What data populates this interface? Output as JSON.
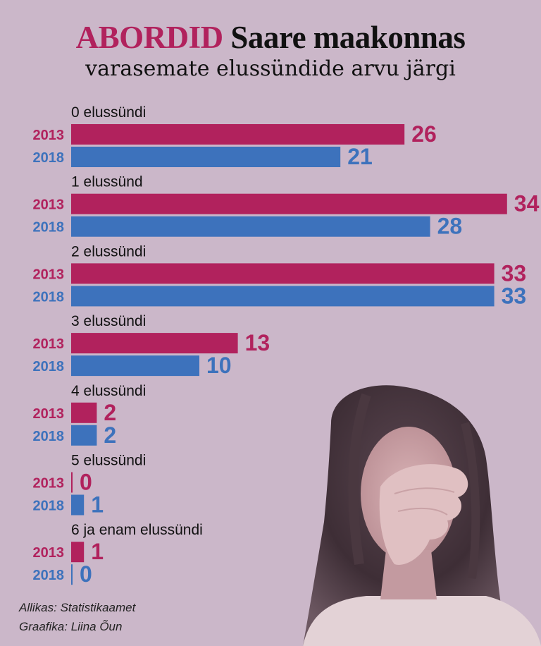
{
  "title": {
    "accent": "ABORDID",
    "main": "Saare maakonnas",
    "subtitle": "varasemate elussündide arvu järgi"
  },
  "colors": {
    "background": "#cbb7c9",
    "2013": "#b1225d",
    "2018": "#3d72bc",
    "text": "#111111"
  },
  "chart_data": {
    "type": "bar",
    "orientation": "horizontal",
    "categories": [
      "0 elussündi",
      "1 elussünd",
      "2 elussündi",
      "3 elussündi",
      "4 elussündi",
      "5 elussündi",
      "6 ja enam elussündi"
    ],
    "series": [
      {
        "name": "2013",
        "values": [
          26,
          34,
          33,
          13,
          2,
          0,
          1
        ]
      },
      {
        "name": "2018",
        "values": [
          21,
          28,
          33,
          10,
          2,
          1,
          0
        ]
      }
    ],
    "xlim": [
      0,
      34
    ],
    "grid": false,
    "legend": "none"
  },
  "credits": {
    "source": "Allikas: Statistikaamet",
    "graphics": "Graafika: Liina Õun"
  },
  "decorations": {
    "photo": "woman-holding-head-photo"
  }
}
